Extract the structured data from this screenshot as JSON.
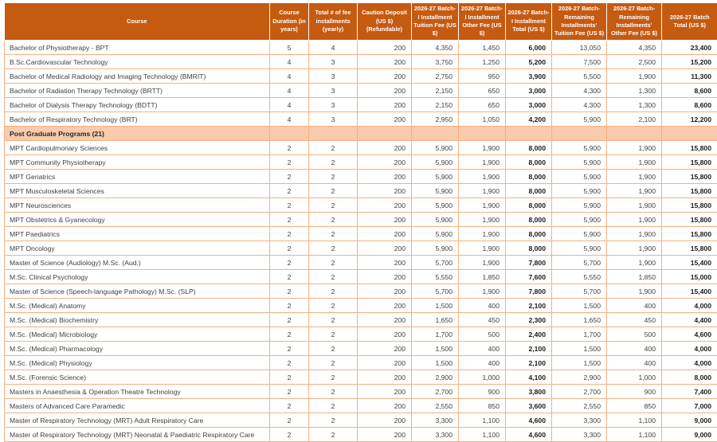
{
  "colors": {
    "header_bg": "#C55A11",
    "header_text": "#FFFFFF",
    "section_bg": "#F8CBAD",
    "grid_border": "#F4B183",
    "body_text": "#3F3F3F"
  },
  "table": {
    "columns": [
      "Course",
      "Course Duration (in years)",
      "Total # of fee installments (yearly)",
      "Caution Deposit (US $) (Refundable)",
      "2026-27 Batch-I Installment Tuition Fee (US $)",
      "2026-27 Batch-I Installment Other Fee (US $)",
      "2026-27 Batch-I Installment Total (US $)",
      "2026-27 Batch-Remaining Installments' Tuition Fee (US $)",
      "2026-27 Batch-Remaining Installments' Other Fee (US $)",
      "2026-27 Batch Total (US $)"
    ],
    "rows": [
      {
        "type": "data",
        "cells": [
          "Bachelor of Physiotherapy - BPT",
          "5",
          "4",
          "200",
          "4,350",
          "1,450",
          "6,000",
          "13,050",
          "4,350",
          "23,400"
        ]
      },
      {
        "type": "data",
        "cells": [
          "B.Sc.Cardiovascular Technology",
          "4",
          "3",
          "200",
          "3,750",
          "1,250",
          "5,200",
          "7,500",
          "2,500",
          "15,200"
        ]
      },
      {
        "type": "data",
        "cells": [
          "Bachelor of Medical Radiology and Imaging Technology (BMRIT)",
          "4",
          "3",
          "200",
          "2,750",
          "950",
          "3,900",
          "5,500",
          "1,900",
          "11,300"
        ]
      },
      {
        "type": "data",
        "cells": [
          "Bachelor of Radiation Therapy Technology (BRTT)",
          "4",
          "3",
          "200",
          "2,150",
          "650",
          "3,000",
          "4,300",
          "1,300",
          "8,600"
        ]
      },
      {
        "type": "data",
        "cells": [
          "Bachelor of Dialysis Therapy Technology (BDTT)",
          "4",
          "3",
          "200",
          "2,150",
          "650",
          "3,000",
          "4,300",
          "1,300",
          "8,600"
        ]
      },
      {
        "type": "data",
        "cells": [
          "Bachelor of Respiratory Technology (BRT)",
          "4",
          "3",
          "200",
          "2,950",
          "1,050",
          "4,200",
          "5,900",
          "2,100",
          "12,200"
        ]
      },
      {
        "type": "section",
        "label": "Post Graduate Programs (21)"
      },
      {
        "type": "data",
        "cells": [
          "MPT Cardiopulmonary Sciences",
          "2",
          "2",
          "200",
          "5,900",
          "1,900",
          "8,000",
          "5,900",
          "1,900",
          "15,800"
        ]
      },
      {
        "type": "data",
        "cells": [
          "MPT Community Physiotherapy",
          "2",
          "2",
          "200",
          "5,900",
          "1,900",
          "8,000",
          "5,900",
          "1,900",
          "15,800"
        ]
      },
      {
        "type": "data",
        "cells": [
          "MPT Geriatrics",
          "2",
          "2",
          "200",
          "5,900",
          "1,900",
          "8,000",
          "5,900",
          "1,900",
          "15,800"
        ]
      },
      {
        "type": "data",
        "cells": [
          "MPT Musculoskeletal Sciences",
          "2",
          "2",
          "200",
          "5,900",
          "1,900",
          "8,000",
          "5,900",
          "1,900",
          "15,800"
        ]
      },
      {
        "type": "data",
        "cells": [
          "MPT Neurosciences",
          "2",
          "2",
          "200",
          "5,900",
          "1,900",
          "8,000",
          "5,900",
          "1,900",
          "15,800"
        ]
      },
      {
        "type": "data",
        "cells": [
          "MPT Obstetrics & Gyanecology",
          "2",
          "2",
          "200",
          "5,900",
          "1,900",
          "8,000",
          "5,900",
          "1,900",
          "15,800"
        ]
      },
      {
        "type": "data",
        "cells": [
          "MPT Paediatrics",
          "2",
          "2",
          "200",
          "5,900",
          "1,900",
          "8,000",
          "5,900",
          "1,900",
          "15,800"
        ]
      },
      {
        "type": "data",
        "cells": [
          "MPT Oncology",
          "2",
          "2",
          "200",
          "5,900",
          "1,900",
          "8,000",
          "5,900",
          "1,900",
          "15,800"
        ]
      },
      {
        "type": "data",
        "cells": [
          "Master of Science (Audiology) M.Sc. (Aud.)",
          "2",
          "2",
          "200",
          "5,700",
          "1,900",
          "7,800",
          "5,700",
          "1,900",
          "15,400"
        ]
      },
      {
        "type": "data",
        "cells": [
          "M.Sc. Clinical Psychology",
          "2",
          "2",
          "200",
          "5,550",
          "1,850",
          "7,600",
          "5,550",
          "1,850",
          "15,000"
        ]
      },
      {
        "type": "data",
        "cells": [
          "Master of Science (Speech-language Pathology) M.Sc. (SLP)",
          "2",
          "2",
          "200",
          "5,700",
          "1,900",
          "7,800",
          "5,700",
          "1,900",
          "15,400"
        ]
      },
      {
        "type": "data",
        "cells": [
          "M.Sc. (Medical) Anatomy",
          "2",
          "2",
          "200",
          "1,500",
          "400",
          "2,100",
          "1,500",
          "400",
          "4,000"
        ]
      },
      {
        "type": "data",
        "cells": [
          "M.Sc. (Medical) Biochemistry",
          "2",
          "2",
          "200",
          "1,650",
          "450",
          "2,300",
          "1,650",
          "450",
          "4,400"
        ]
      },
      {
        "type": "data",
        "cells": [
          "M.Sc. (Medical) Microbiology",
          "2",
          "2",
          "200",
          "1,700",
          "500",
          "2,400",
          "1,700",
          "500",
          "4,600"
        ]
      },
      {
        "type": "data",
        "cells": [
          "M.Sc. (Medical) Pharmacology",
          "2",
          "2",
          "200",
          "1,500",
          "400",
          "2,100",
          "1,500",
          "400",
          "4,000"
        ]
      },
      {
        "type": "data",
        "cells": [
          "M.Sc. (Medical) Physiology",
          "2",
          "2",
          "200",
          "1,500",
          "400",
          "2,100",
          "1,500",
          "400",
          "4,000"
        ]
      },
      {
        "type": "data",
        "cells": [
          "M.Sc. (Forensic Science)",
          "2",
          "2",
          "200",
          "2,900",
          "1,000",
          "4,100",
          "2,900",
          "1,000",
          "8,000"
        ]
      },
      {
        "type": "data",
        "cells": [
          "Masters in Anaesthesia & Operation Theatre Technology",
          "2",
          "2",
          "200",
          "2,700",
          "900",
          "3,800",
          "2,700",
          "900",
          "7,400"
        ]
      },
      {
        "type": "data",
        "cells": [
          "Masters of Advanced Care Paramedic",
          "2",
          "2",
          "200",
          "2,550",
          "850",
          "3,600",
          "2,550",
          "850",
          "7,000"
        ]
      },
      {
        "type": "data",
        "cells": [
          "Master of Respiratory Technology (MRT) Adult Respiratory Care",
          "2",
          "2",
          "200",
          "3,300",
          "1,100",
          "4,600",
          "3,300",
          "1,100",
          "9,000"
        ]
      },
      {
        "type": "data",
        "cells": [
          "Master of Respiratory Technology (MRT) Neonatal & Paediatric Respiratory Care",
          "2",
          "2",
          "200",
          "3,300",
          "1,100",
          "4,600",
          "3,300",
          "1,100",
          "9,000"
        ]
      }
    ]
  }
}
